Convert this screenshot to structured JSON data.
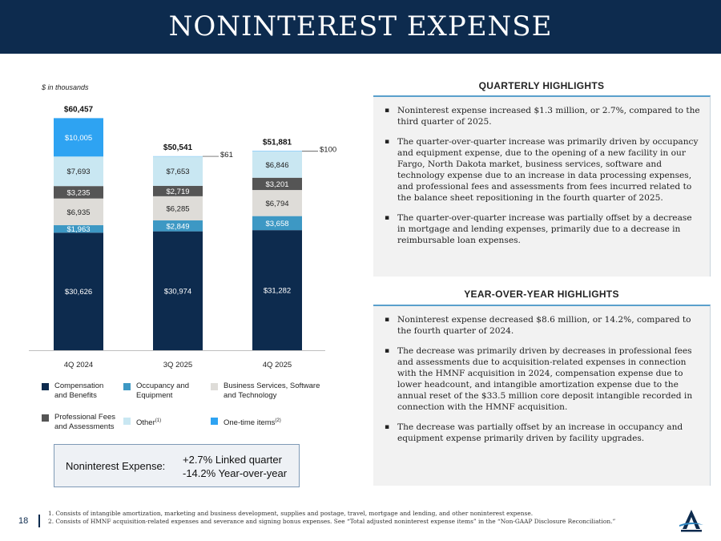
{
  "header": {
    "title": "NONINTEREST EXPENSE"
  },
  "units_note": "$ in thousands",
  "chart_data": {
    "type": "bar",
    "stacked": true,
    "categories": [
      "4Q 2024",
      "3Q 2025",
      "4Q 2025"
    ],
    "totals": [
      "$60,457",
      "$50,541",
      "$51,881"
    ],
    "series": [
      {
        "name": "Compensation and Benefits",
        "color": "#0d2b4e",
        "label_color": "#ffffff",
        "values": [
          30626,
          30974,
          31282
        ],
        "labels": [
          "$30,626",
          "$30,974",
          "$31,282"
        ]
      },
      {
        "name": "Occupancy and Equipment",
        "color": "#3d98c4",
        "label_color": "#ffffff",
        "values": [
          1963,
          2849,
          3658
        ],
        "labels": [
          "$1,963",
          "$2,849",
          "$3,658"
        ]
      },
      {
        "name": "Business Services, Software and Technology",
        "color": "#dedcd8",
        "label_color": "#222222",
        "values": [
          6935,
          6285,
          6794
        ],
        "labels": [
          "$6,935",
          "$6,285",
          "$6,794"
        ]
      },
      {
        "name": "Professional Fees and Assessments",
        "color": "#555555",
        "label_color": "#ffffff",
        "values": [
          3235,
          2719,
          3201
        ],
        "labels": [
          "$3,235",
          "$2,719",
          "$3,201"
        ]
      },
      {
        "name": "Other",
        "note": "(1)",
        "color": "#c9e7f2",
        "label_color": "#222222",
        "values": [
          7693,
          7653,
          6846
        ],
        "labels": [
          "$7,693",
          "$7,653",
          "$6,846"
        ]
      },
      {
        "name": "One-time items",
        "note": "(2)",
        "color": "#2ea3f2",
        "label_color": "#ffffff",
        "values": [
          10005,
          61,
          100
        ],
        "labels": [
          "$10,005",
          "$61",
          "$100"
        ]
      }
    ],
    "ylim": [
      0,
      62000
    ],
    "grid": false,
    "legend_placement": "bottom"
  },
  "legend": [
    {
      "label": "Compensation and Benefits",
      "color": "#0d2b4e"
    },
    {
      "label": "Occupancy and Equipment",
      "color": "#3d98c4"
    },
    {
      "label": "Business Services, Software and Technology",
      "color": "#dedcd8"
    },
    {
      "label": "Professional Fees and Assessments",
      "color": "#555555"
    },
    {
      "label": "Other",
      "note": "(1)",
      "color": "#c9e7f2"
    },
    {
      "label": "One-time items",
      "note": "(2)",
      "color": "#2ea3f2"
    }
  ],
  "summary_box": {
    "label": "Noninterest Expense:",
    "line1": "+2.7% Linked quarter",
    "line2": "-14.2% Year-over-year"
  },
  "quarterly": {
    "title": "QUARTERLY HIGHLIGHTS",
    "bullets": [
      "Noninterest expense increased $1.3 million, or 2.7%, compared to the third quarter of 2025.",
      "The quarter-over-quarter increase was primarily driven by occupancy and equipment expense, due to the opening of a new facility in our Fargo, North Dakota market, business services, software and technology expense due to an increase in data processing expenses, and professional fees and assessments from fees incurred related to the balance sheet repositioning in the fourth quarter of 2025.",
      "The quarter-over-quarter increase was partially offset by a decrease in mortgage and lending expenses, primarily due to a decrease in reimbursable loan expenses."
    ]
  },
  "yoy": {
    "title": "YEAR-OVER-YEAR HIGHLIGHTS",
    "bullets": [
      "Noninterest expense decreased $8.6 million, or 14.2%, compared to the fourth quarter of 2024.",
      "The decrease was primarily driven by decreases in professional fees and assessments due to acquisition-related expenses in connection with the HMNF acquisition in 2024, compensation expense due to lower headcount, and intangible amortization expense due to the annual reset of the $33.5 million core deposit intangible recorded in connection with the HMNF acquisition.",
      "The decrease was partially offset by an increase in occupancy and equipment expense primarily driven by facility upgrades."
    ]
  },
  "footnotes": {
    "note1": "1. Consists of intangible amortization, marketing and business development, supplies and postage, travel, mortgage and lending, and other noninterest expense.",
    "note2": "2. Consists of HMNF acquisition-related expenses and severance and signing bonus expenses. See “Total adjusted noninterest expense items” in the “Non-GAAP Disclosure Reconciliation.”"
  },
  "page_number": "18",
  "logo": {
    "name": "company-logo",
    "color": "#0d2b4e"
  }
}
